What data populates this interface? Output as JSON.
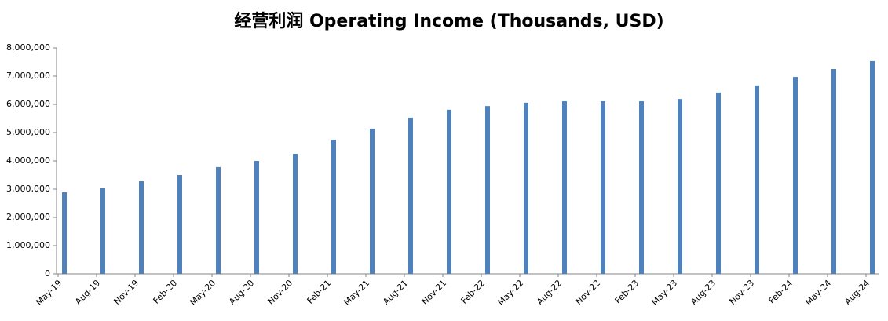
{
  "chart_data": {
    "type": "bar",
    "title": "经营利润 Operating Income (Thousands, USD)",
    "categories": [
      "May-19",
      "Aug-19",
      "Nov-19",
      "Feb-20",
      "May-20",
      "Aug-20",
      "Nov-20",
      "Feb-21",
      "May-21",
      "Aug-21",
      "Nov-21",
      "Feb-22",
      "May-22",
      "Aug-22",
      "Nov-22",
      "Feb-23",
      "May-23",
      "Aug-23",
      "Nov-23",
      "Feb-24",
      "May-24",
      "Aug-24"
    ],
    "values": [
      2890000,
      3030000,
      3280000,
      3500000,
      3780000,
      4000000,
      4250000,
      4750000,
      5140000,
      5530000,
      5810000,
      5940000,
      6060000,
      6110000,
      6110000,
      6110000,
      6190000,
      6420000,
      6670000,
      6970000,
      7250000,
      7530000
    ],
    "color": "#4f81bd",
    "ylim": [
      0,
      8000000
    ],
    "yticks": [
      0,
      {
        "value": 1000000,
        "label": "1,000,000"
      },
      {
        "value": 2000000,
        "label": "2,000,000"
      },
      {
        "value": 3000000,
        "label": "3,000,000"
      },
      {
        "value": 4000000,
        "label": "4,000,000"
      },
      {
        "value": 5000000,
        "label": "5,000,000"
      },
      {
        "value": 6000000,
        "label": "6,000,000"
      },
      {
        "value": 7000000,
        "label": "7,000,000"
      },
      {
        "value": 8000000,
        "label": "8,000,000"
      }
    ],
    "grid": false
  }
}
